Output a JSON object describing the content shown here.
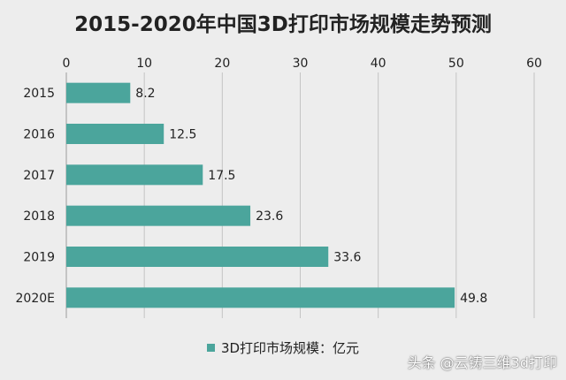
{
  "chart_data": {
    "type": "bar",
    "orientation": "horizontal",
    "title": "2015-2020年中国3D打印市场规模走势预测",
    "categories": [
      "2015",
      "2016",
      "2017",
      "2018",
      "2019",
      "2020E"
    ],
    "series": [
      {
        "name": "3D打印市场规模：亿元",
        "values": [
          8.2,
          12.5,
          17.5,
          23.6,
          33.6,
          49.8
        ]
      }
    ],
    "data_labels": [
      "8.2",
      "12.5",
      "17.5",
      "23.6",
      "33.6",
      "49.8"
    ],
    "xlim": [
      0,
      60
    ],
    "xticks": [
      0,
      10,
      20,
      30,
      40,
      50,
      60
    ],
    "xtick_labels": [
      "0",
      "10",
      "20",
      "30",
      "40",
      "50",
      "60"
    ],
    "x_axis_position": "top",
    "grid": true,
    "legend": "bottom",
    "bar_color": "#4ba59c"
  },
  "watermark": "头条 @云铸三维3d打印"
}
